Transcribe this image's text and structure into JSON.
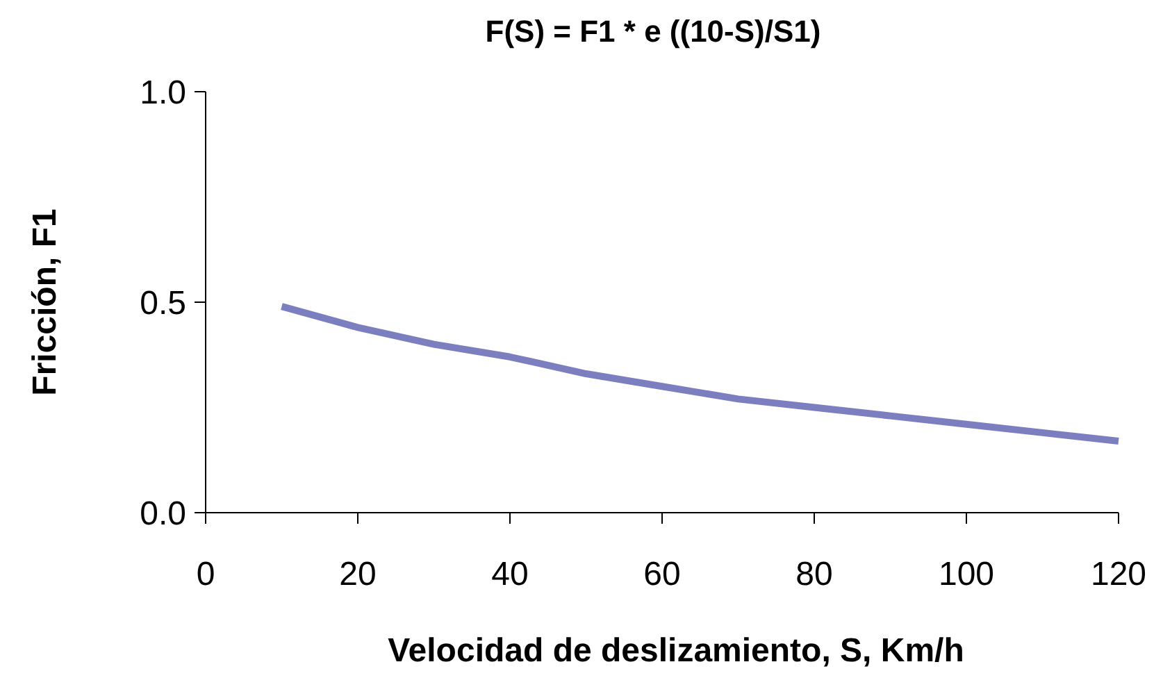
{
  "chart_data": {
    "type": "line",
    "title": "F(S) = F1 * e ((10-S)/S1)",
    "xlabel": "Velocidad de deslizamiento, S, Km/h",
    "ylabel": "Fricción, F1",
    "x": [
      10,
      20,
      30,
      40,
      50,
      60,
      70,
      80,
      90,
      100,
      110,
      120
    ],
    "series": [
      {
        "color": "#7b7fc0",
        "values": [
          0.49,
          0.44,
          0.4,
          0.37,
          0.33,
          0.3,
          0.27,
          0.25,
          0.23,
          0.21,
          0.19,
          0.17
        ]
      }
    ],
    "xlim": [
      0,
      120
    ],
    "xticks": [
      0,
      20,
      40,
      60,
      80,
      100,
      120
    ],
    "ylim": [
      0,
      1
    ],
    "yticks": [
      {
        "value": 0,
        "label": "0.0"
      },
      {
        "value": 0.5,
        "label": "0.5"
      },
      {
        "value": 1,
        "label": "1.0"
      }
    ],
    "grid": false,
    "marker": "none",
    "line_style": "solid"
  }
}
